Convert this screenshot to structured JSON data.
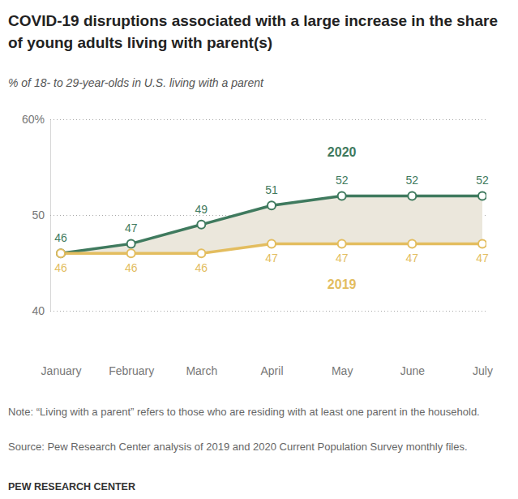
{
  "chart_data": {
    "type": "line",
    "title": "COVID-19 disruptions associated with a large increase in the share of young adults living with parent(s)",
    "subtitle": "% of 18- to 29-year-olds in U.S. living with a parent",
    "categories": [
      "January",
      "February",
      "March",
      "April",
      "May",
      "June",
      "July"
    ],
    "series": [
      {
        "name": "2020",
        "color": "#3f7a5e",
        "marker": "circle",
        "values": [
          46,
          47,
          49,
          51,
          52,
          52,
          52
        ]
      },
      {
        "name": "2019",
        "color": "#e3bd5f",
        "marker": "circle",
        "values": [
          46,
          46,
          46,
          47,
          47,
          47,
          47
        ]
      }
    ],
    "ylim": [
      40,
      60
    ],
    "yticks": [
      40,
      50,
      {
        "value": 60,
        "label": "60%"
      }
    ],
    "grid": true,
    "data_labels": true,
    "note": "Note: “Living with a parent” refers to those who are residing with at least one parent in the household.",
    "source": "Source: Pew Research Center analysis of 2019 and 2020 Current Population Survey monthly files.",
    "credit": "PEW RESEARCH CENTER"
  }
}
